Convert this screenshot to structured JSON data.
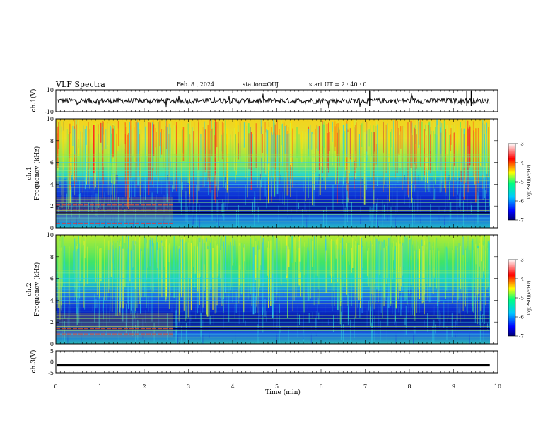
{
  "header": {
    "title": "VLF Spectra",
    "date": "Feb. 8 , 2024",
    "station": "station=OUJ",
    "start": "start UT =  2 : 40 : 0"
  },
  "chart_data": [
    {
      "type": "line",
      "panel": "ch1-waveform",
      "ylabel": "ch.1(V)",
      "ylim": [
        -10,
        10
      ],
      "yticks": [
        "10",
        "-10"
      ],
      "xlim": [
        0,
        10
      ],
      "baseline": 0,
      "data_xmax": 9.82
    },
    {
      "type": "heatmap",
      "panel": "ch1-spectrogram",
      "ylabel": "ch.1\nFrequency (kHz)",
      "ylim": [
        0,
        10
      ],
      "yticks": [
        "0",
        "2",
        "4",
        "6",
        "8",
        "10"
      ],
      "xlim": [
        0,
        10
      ],
      "data_xmax": 9.82,
      "colorbar": {
        "label": "log(PSD)(V²/Hz)",
        "range": [
          -7,
          -3
        ],
        "ticks": [
          "-3",
          "-4",
          "-5",
          "-6",
          "-7"
        ]
      }
    },
    {
      "type": "heatmap",
      "panel": "ch2-spectrogram",
      "ylabel": "ch.2\nFrequency (kHz)",
      "ylim": [
        0,
        10
      ],
      "yticks": [
        "0",
        "2",
        "4",
        "6",
        "8",
        "10"
      ],
      "xlim": [
        0,
        10
      ],
      "data_xmax": 9.82,
      "colorbar": {
        "label": "log(PSD)(V²/Hz)",
        "range": [
          -7,
          -3
        ],
        "ticks": [
          "-3",
          "-4",
          "-5",
          "-6",
          "-7"
        ]
      }
    },
    {
      "type": "line",
      "panel": "ch3-waveform",
      "ylabel": "ch.3(V)",
      "ylim": [
        -5,
        5
      ],
      "yticks": [
        "5",
        "0",
        "-5"
      ],
      "xlim": [
        0,
        10
      ],
      "baseline": -1.5,
      "data_xmax": 9.82,
      "xlabel": "Time (min)",
      "xticks": [
        "0",
        "1",
        "2",
        "3",
        "4",
        "5",
        "6",
        "7",
        "8",
        "9",
        "10"
      ]
    }
  ]
}
